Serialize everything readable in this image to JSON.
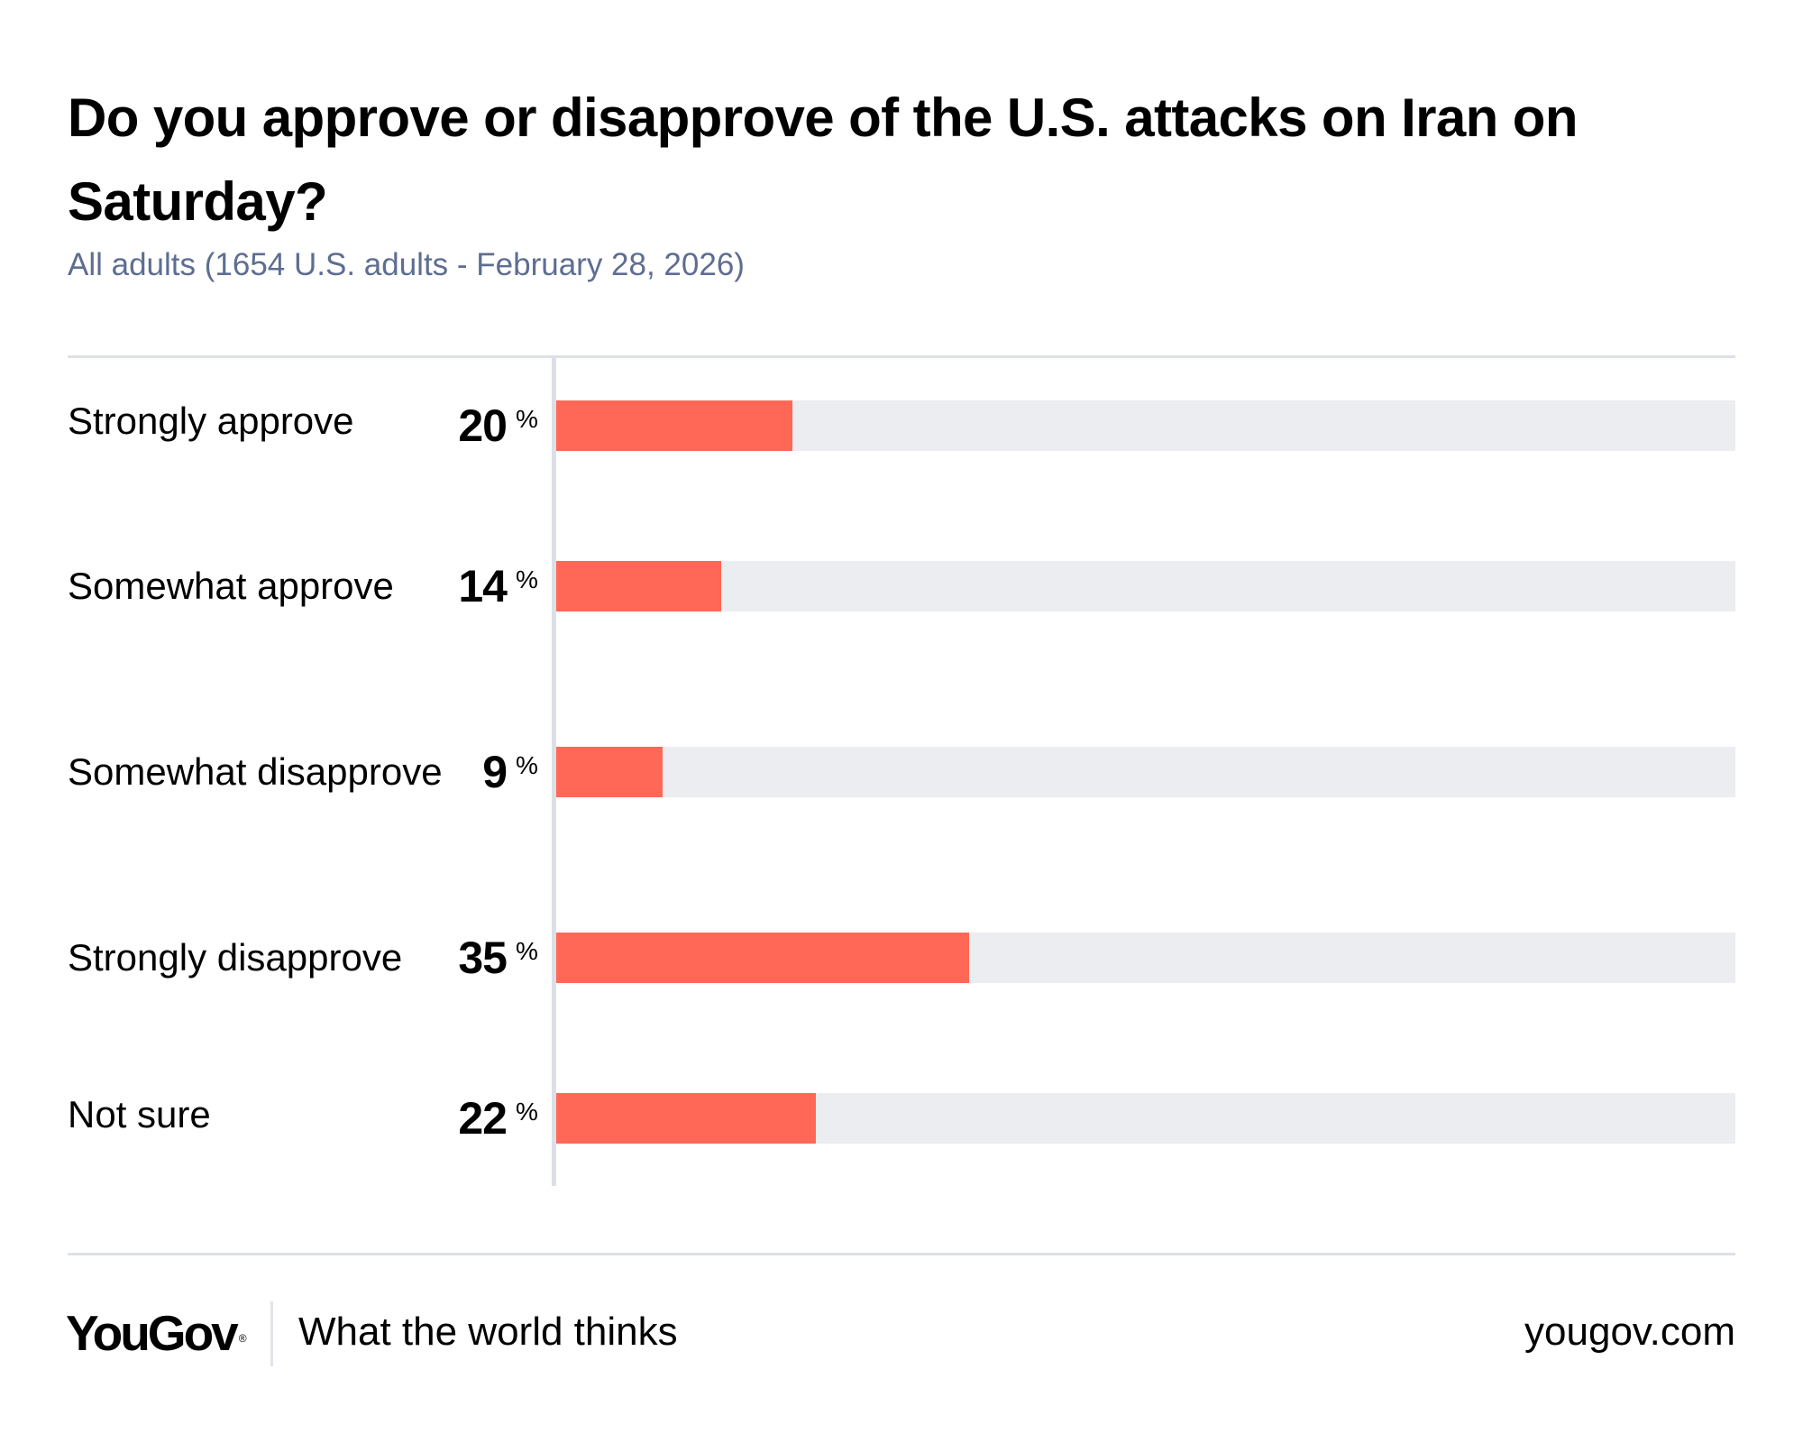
{
  "header": {
    "title": "Do you approve or disapprove of the U.S. attacks on Iran on Saturday?",
    "subtitle": "All adults (1654 U.S. adults - February 28, 2026)"
  },
  "colors": {
    "bar": "#ff6857",
    "track": "#ecedf1",
    "subtitle": "#5e6d91",
    "divider": "#dfe1e8"
  },
  "chart_data": {
    "type": "bar",
    "orientation": "horizontal",
    "title": "Do you approve or disapprove of the U.S. attacks on Iran on Saturday?",
    "subtitle": "All adults (1654 U.S. adults - February 28, 2026)",
    "xlabel": "",
    "ylabel": "",
    "xlim": [
      0,
      100
    ],
    "unit": "%",
    "grid": false,
    "categories": [
      "Strongly approve",
      "Somewhat approve",
      "Somewhat disapprove",
      "Strongly disapprove",
      "Not sure"
    ],
    "values": [
      20,
      14,
      9,
      35,
      22
    ],
    "rows": [
      {
        "label": "Strongly approve",
        "value": 20,
        "value_text": "20",
        "unit": "%"
      },
      {
        "label": "Somewhat approve",
        "value": 14,
        "value_text": "14",
        "unit": "%"
      },
      {
        "label": "Somewhat disapprove",
        "value": 9,
        "value_text": "9",
        "unit": "%"
      },
      {
        "label": "Strongly disapprove",
        "value": 35,
        "value_text": "35",
        "unit": "%"
      },
      {
        "label": "Not sure",
        "value": 22,
        "value_text": "22",
        "unit": "%"
      }
    ]
  },
  "footer": {
    "logo_text": "YouGov",
    "logo_mark": "®",
    "tagline": "What the world thinks",
    "url": "yougov.com"
  }
}
